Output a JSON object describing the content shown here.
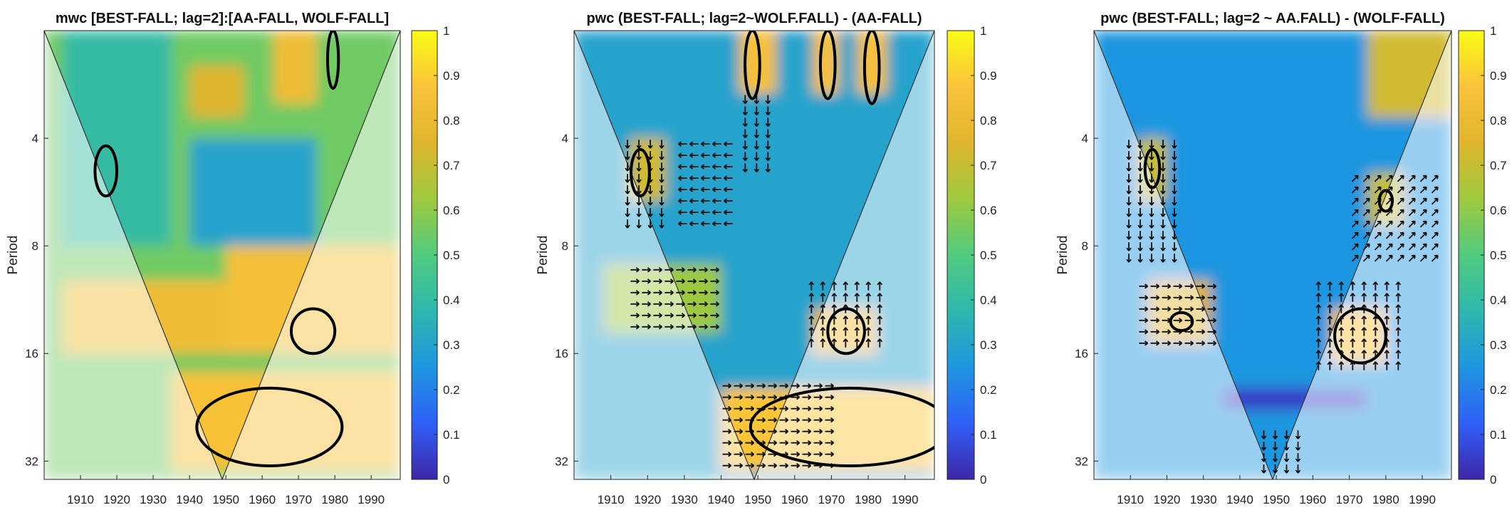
{
  "figure": {
    "colors": {
      "colormap": [
        "#3e26a8",
        "#2f60f7",
        "#1f96e0",
        "#2eb7ae",
        "#51cb7e",
        "#9fc93e",
        "#dfb52d",
        "#fbc33a",
        "#f9fb15"
      ],
      "coi_overlay": "#ffffff",
      "sig_contour": "#000000",
      "coi_contour": "#8a8a8a",
      "arrow_inside": "#111111",
      "arrow_outside": "#8c8c8c"
    }
  },
  "chart_data": [
    {
      "type": "heatmap",
      "title": "mwc [BEST-FALL; lag=2]:[AA-FALL, WOLF-FALL]",
      "xlabel": "",
      "ylabel": "Period",
      "x_ticks": [
        1910,
        1920,
        1930,
        1940,
        1950,
        1960,
        1970,
        1980,
        1990
      ],
      "y_ticks": [
        4,
        8,
        16,
        32
      ],
      "y_scale": "log2",
      "xlim": [
        1900,
        1998
      ],
      "ylim": [
        2,
        36
      ],
      "colorbar": {
        "min": 0,
        "max": 1,
        "ticks": [
          "0",
          "0.1",
          "0.2",
          "0.3",
          "0.4",
          "0.5",
          "0.6",
          "0.7",
          "0.8",
          "0.9",
          "1"
        ]
      },
      "coherence_regions": [
        {
          "x": [
            1900,
            1998
          ],
          "period": [
            2,
            36
          ],
          "level": 0.55
        },
        {
          "x": [
            1905,
            1935
          ],
          "period": [
            2,
            8
          ],
          "level": 0.4
        },
        {
          "x": [
            1940,
            1975
          ],
          "period": [
            4,
            8
          ],
          "level": 0.3
        },
        {
          "x": [
            1905,
            1955
          ],
          "period": [
            10,
            16
          ],
          "level": 0.82
        },
        {
          "x": [
            1950,
            1998
          ],
          "period": [
            8,
            16
          ],
          "level": 0.85
        },
        {
          "x": [
            1935,
            1998
          ],
          "period": [
            18,
            34
          ],
          "level": 0.86
        },
        {
          "x": [
            1963,
            1975
          ],
          "period": [
            2,
            3.2
          ],
          "level": 0.82
        },
        {
          "x": [
            1940,
            1955
          ],
          "period": [
            2.5,
            3.5
          ],
          "level": 0.75
        }
      ],
      "significant_regions": [
        {
          "x_center": 1917,
          "x_radius": 3,
          "period_range": [
            4.2,
            5.8
          ]
        },
        {
          "x_center": 1979.5,
          "x_radius": 1.5,
          "period_range": [
            2,
            2.9
          ]
        },
        {
          "x_center": 1962,
          "x_radius": 20,
          "period_range": [
            20,
            33
          ]
        },
        {
          "x_center": 1974,
          "x_radius": 6,
          "period_range": [
            12,
            16
          ]
        }
      ],
      "phase_arrows": []
    },
    {
      "type": "heatmap",
      "title": "pwc (BEST-FALL; lag=2~WOLF.FALL) - (AA-FALL)",
      "xlabel": "",
      "ylabel": "Period",
      "x_ticks": [
        1910,
        1920,
        1930,
        1940,
        1950,
        1960,
        1970,
        1980,
        1990
      ],
      "y_ticks": [
        4,
        8,
        16,
        32
      ],
      "y_scale": "log2",
      "xlim": [
        1900,
        1998
      ],
      "ylim": [
        2,
        36
      ],
      "colorbar": {
        "min": 0,
        "max": 1,
        "ticks": [
          "0",
          "0.1",
          "0.2",
          "0.3",
          "0.4",
          "0.5",
          "0.6",
          "0.7",
          "0.8",
          "0.9",
          "1"
        ]
      },
      "coherence_regions": [
        {
          "x": [
            1900,
            1998
          ],
          "period": [
            2,
            36
          ],
          "level": 0.3
        },
        {
          "x": [
            1915,
            1925
          ],
          "period": [
            4,
            6
          ],
          "level": 0.72
        },
        {
          "x": [
            1908,
            1940
          ],
          "period": [
            9,
            14
          ],
          "level": 0.62
        },
        {
          "x": [
            1965,
            1982
          ],
          "period": [
            12,
            16
          ],
          "level": 0.82
        },
        {
          "x": [
            1940,
            1998
          ],
          "period": [
            20,
            34
          ],
          "level": 0.88
        },
        {
          "x": [
            1945,
            1955
          ],
          "period": [
            2,
            3
          ],
          "level": 0.85
        },
        {
          "x": [
            1965,
            1972
          ],
          "period": [
            2,
            3
          ],
          "level": 0.85
        },
        {
          "x": [
            1977,
            1985
          ],
          "period": [
            2,
            3
          ],
          "level": 0.85
        }
      ],
      "significant_regions": [
        {
          "x_center": 1918,
          "x_radius": 2.5,
          "period_range": [
            4.3,
            5.8
          ]
        },
        {
          "x_center": 1948.5,
          "x_radius": 2,
          "period_range": [
            2,
            3.1
          ]
        },
        {
          "x_center": 1969,
          "x_radius": 2,
          "period_range": [
            2,
            3.1
          ]
        },
        {
          "x_center": 1981,
          "x_radius": 2,
          "period_range": [
            2,
            3.2
          ]
        },
        {
          "x_center": 1974,
          "x_radius": 5,
          "period_range": [
            12,
            16
          ]
        },
        {
          "x_center": 1975,
          "x_radius": 27,
          "period_range": [
            20,
            33
          ]
        }
      ],
      "phase_arrows": [
        {
          "x": [
            1915,
            1940
          ],
          "period": [
            9,
            14
          ],
          "direction": "right"
        },
        {
          "x": [
            1940,
            1970
          ],
          "period": [
            19,
            34
          ],
          "direction": "right"
        },
        {
          "x": [
            1913,
            1925
          ],
          "period": [
            4,
            7
          ],
          "direction": "down"
        },
        {
          "x": [
            1928,
            1945
          ],
          "period": [
            4,
            7
          ],
          "direction": "left"
        },
        {
          "x": [
            1963,
            1985
          ],
          "period": [
            10,
            16
          ],
          "direction": "up"
        },
        {
          "x": [
            1945,
            1955
          ],
          "period": [
            3,
            5
          ],
          "direction": "down"
        }
      ]
    },
    {
      "type": "heatmap",
      "title": "pwc (BEST-FALL; lag=2 ~ AA.FALL) - (WOLF-FALL)",
      "xlabel": "",
      "ylabel": "Period",
      "x_ticks": [
        1910,
        1920,
        1930,
        1940,
        1950,
        1960,
        1970,
        1980,
        1990
      ],
      "y_ticks": [
        4,
        8,
        16,
        32
      ],
      "y_scale": "log2",
      "xlim": [
        1900,
        1998
      ],
      "ylim": [
        2,
        36
      ],
      "colorbar": {
        "min": 0,
        "max": 1,
        "ticks": [
          "0",
          "0.1",
          "0.2",
          "0.3",
          "0.4",
          "0.5",
          "0.6",
          "0.7",
          "0.8",
          "0.9",
          "1"
        ]
      },
      "coherence_regions": [
        {
          "x": [
            1900,
            1998
          ],
          "period": [
            2,
            36
          ],
          "level": 0.25
        },
        {
          "x": [
            1912,
            1920
          ],
          "period": [
            4,
            6
          ],
          "level": 0.7
        },
        {
          "x": [
            1915,
            1932
          ],
          "period": [
            10,
            15
          ],
          "level": 0.75
        },
        {
          "x": [
            1965,
            1980
          ],
          "period": [
            12,
            17
          ],
          "level": 0.85
        },
        {
          "x": [
            1975,
            1985
          ],
          "period": [
            5,
            7
          ],
          "level": 0.7
        },
        {
          "x": [
            1975,
            1998
          ],
          "period": [
            2,
            3.5
          ],
          "level": 0.72
        },
        {
          "x": [
            1935,
            1975
          ],
          "period": [
            20,
            23
          ],
          "level": 0.05
        }
      ],
      "significant_regions": [
        {
          "x_center": 1916,
          "x_radius": 2,
          "period_range": [
            4.3,
            5.5
          ]
        },
        {
          "x_center": 1924,
          "x_radius": 3,
          "period_range": [
            12.3,
            13.8
          ]
        },
        {
          "x_center": 1980,
          "x_radius": 1.8,
          "period_range": [
            5.6,
            6.4
          ]
        },
        {
          "x_center": 1973,
          "x_radius": 7,
          "period_range": [
            12,
            17
          ]
        }
      ],
      "phase_arrows": [
        {
          "x": [
            1908,
            1925
          ],
          "period": [
            4,
            9
          ],
          "direction": "down"
        },
        {
          "x": [
            1912,
            1935
          ],
          "period": [
            10,
            15
          ],
          "direction": "right"
        },
        {
          "x": [
            1960,
            1985
          ],
          "period": [
            10,
            18
          ],
          "direction": "up"
        },
        {
          "x": [
            1970,
            1995
          ],
          "period": [
            5,
            9
          ],
          "direction": "upright"
        },
        {
          "x": [
            1945,
            1958
          ],
          "period": [
            26,
            34
          ],
          "direction": "down"
        }
      ]
    }
  ]
}
